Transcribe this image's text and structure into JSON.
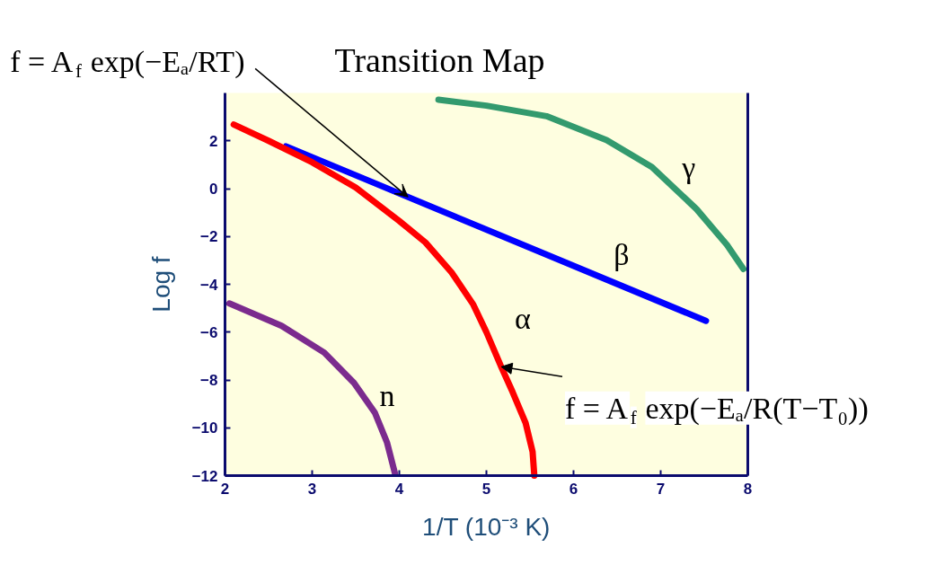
{
  "chart_data": {
    "type": "line",
    "title": "Transition Map",
    "xlabel": "1/T (10⁻³ K)",
    "ylabel": "Log f",
    "xlim": [
      2,
      8
    ],
    "ylim": [
      -12,
      4
    ],
    "xticks": [
      2,
      3,
      4,
      5,
      6,
      7,
      8
    ],
    "yticks": [
      -12,
      -10,
      -8,
      -6,
      -4,
      -2,
      0,
      2
    ],
    "line_style": "solid",
    "series": [
      {
        "name": "β",
        "color": "#0000ff",
        "x": [
          2.7,
          7.52
        ],
        "values": [
          1.77,
          -5.53
        ]
      },
      {
        "name": "α",
        "color": "#ff0000",
        "x": [
          2.1,
          2.5,
          3.0,
          3.5,
          4.0,
          4.3,
          4.6,
          4.85,
          5.0,
          5.17,
          5.3,
          5.45,
          5.53,
          5.55
        ],
        "values": [
          2.68,
          2.0,
          1.1,
          0.05,
          -1.35,
          -2.25,
          -3.5,
          -4.85,
          -6.0,
          -7.45,
          -8.5,
          -9.8,
          -11.0,
          -12.0
        ]
      },
      {
        "name": "γ",
        "color": "#339a6e",
        "x": [
          4.45,
          5.0,
          5.69,
          6.38,
          6.9,
          7.41,
          7.76,
          7.95
        ],
        "values": [
          3.72,
          3.47,
          3.03,
          2.03,
          0.9,
          -0.85,
          -2.35,
          -3.36
        ]
      },
      {
        "name": "n",
        "color": "#7b2b8e",
        "x": [
          2.05,
          2.65,
          3.14,
          3.48,
          3.72,
          3.86,
          3.95
        ],
        "values": [
          -4.8,
          -5.74,
          -6.86,
          -8.12,
          -9.37,
          -10.62,
          -11.9
        ]
      }
    ],
    "annotations": [
      {
        "text": "f = A$_{f}$ exp(−Eₐ/RT)",
        "x": 4.1,
        "y": -0.35
      },
      {
        "text": "f = A$_{f}$ exp(−Eₐ/R(T−T₀))",
        "x": 5.17,
        "y": -7.45
      }
    ]
  }
}
